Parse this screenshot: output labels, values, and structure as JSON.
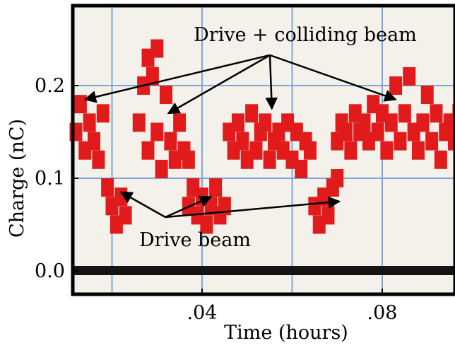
{
  "chart_data": {
    "type": "scatter",
    "title": "",
    "xlabel": "Time (hours)",
    "ylabel": "Charge (nC)",
    "xlim": [
      0.01,
      0.1
    ],
    "ylim": [
      -0.02,
      0.28
    ],
    "x_ticks": [
      {
        "value": 0.04,
        "label": ".04"
      },
      {
        "value": 0.08,
        "label": ".08"
      }
    ],
    "y_ticks": [
      {
        "value": 0.0,
        "label": "0.0"
      },
      {
        "value": 0.1,
        "label": "0.1"
      },
      {
        "value": 0.2,
        "label": "0.2"
      }
    ],
    "grid": true,
    "colors": {
      "points": "#e11b1b",
      "baseline": "#141414",
      "grid": "#7fa6d6",
      "background": "#f4f1ea"
    },
    "series": [
      {
        "color": "#e11b1b",
        "points": [
          [
            0.012,
            0.15
          ],
          [
            0.013,
            0.18
          ],
          [
            0.014,
            0.13
          ],
          [
            0.015,
            0.16
          ],
          [
            0.016,
            0.14
          ],
          [
            0.017,
            0.12
          ],
          [
            0.018,
            0.17
          ],
          [
            0.026,
            0.16
          ],
          [
            0.027,
            0.2
          ],
          [
            0.028,
            0.23
          ],
          [
            0.029,
            0.21
          ],
          [
            0.028,
            0.13
          ],
          [
            0.03,
            0.15
          ],
          [
            0.031,
            0.11
          ],
          [
            0.032,
            0.19
          ],
          [
            0.033,
            0.14
          ],
          [
            0.034,
            0.12
          ],
          [
            0.035,
            0.16
          ],
          [
            0.036,
            0.13
          ],
          [
            0.037,
            0.12
          ],
          [
            0.03,
            0.24
          ],
          [
            0.046,
            0.15
          ],
          [
            0.047,
            0.13
          ],
          [
            0.048,
            0.16
          ],
          [
            0.049,
            0.14
          ],
          [
            0.05,
            0.12
          ],
          [
            0.051,
            0.17
          ],
          [
            0.052,
            0.13
          ],
          [
            0.053,
            0.15
          ],
          [
            0.054,
            0.16
          ],
          [
            0.055,
            0.12
          ],
          [
            0.056,
            0.14
          ],
          [
            0.057,
            0.15
          ],
          [
            0.058,
            0.13
          ],
          [
            0.059,
            0.16
          ],
          [
            0.06,
            0.12
          ],
          [
            0.061,
            0.15
          ],
          [
            0.062,
            0.11
          ],
          [
            0.063,
            0.14
          ],
          [
            0.064,
            0.13
          ],
          [
            0.07,
            0.14
          ],
          [
            0.071,
            0.16
          ],
          [
            0.072,
            0.15
          ],
          [
            0.073,
            0.13
          ],
          [
            0.074,
            0.17
          ],
          [
            0.075,
            0.15
          ],
          [
            0.076,
            0.16
          ],
          [
            0.077,
            0.14
          ],
          [
            0.078,
            0.18
          ],
          [
            0.079,
            0.15
          ],
          [
            0.08,
            0.17
          ],
          [
            0.081,
            0.13
          ],
          [
            0.082,
            0.16
          ],
          [
            0.083,
            0.2
          ],
          [
            0.084,
            0.14
          ],
          [
            0.085,
            0.17
          ],
          [
            0.086,
            0.21
          ],
          [
            0.087,
            0.15
          ],
          [
            0.088,
            0.13
          ],
          [
            0.089,
            0.16
          ],
          [
            0.09,
            0.19
          ],
          [
            0.091,
            0.14
          ],
          [
            0.092,
            0.17
          ],
          [
            0.093,
            0.12
          ],
          [
            0.094,
            0.15
          ],
          [
            0.095,
            0.16
          ],
          [
            0.096,
            0.14
          ],
          [
            0.097,
            0.17
          ],
          [
            0.098,
            0.15
          ],
          [
            0.099,
            0.16
          ],
          [
            0.019,
            0.09
          ],
          [
            0.02,
            0.07
          ],
          [
            0.021,
            0.05
          ],
          [
            0.022,
            0.08
          ],
          [
            0.023,
            0.06
          ],
          [
            0.037,
            0.07
          ],
          [
            0.038,
            0.09
          ],
          [
            0.039,
            0.06
          ],
          [
            0.04,
            0.08
          ],
          [
            0.041,
            0.05
          ],
          [
            0.042,
            0.07
          ],
          [
            0.043,
            0.09
          ],
          [
            0.044,
            0.06
          ],
          [
            0.045,
            0.07
          ],
          [
            0.065,
            0.07
          ],
          [
            0.066,
            0.05
          ],
          [
            0.067,
            0.08
          ],
          [
            0.068,
            0.06
          ],
          [
            0.069,
            0.09
          ],
          [
            0.07,
            0.1
          ]
        ]
      }
    ],
    "baseline": {
      "value": 0.0,
      "color": "#141414"
    },
    "annotations": [
      {
        "text": "Drive + colliding beam",
        "targets": [
          [
            0.014,
            0.185
          ],
          [
            0.0325,
            0.17
          ],
          [
            0.0555,
            0.175
          ],
          [
            0.083,
            0.185
          ]
        ]
      },
      {
        "text": "Drive beam",
        "targets": [
          [
            0.022,
            0.085
          ],
          [
            0.042,
            0.08
          ],
          [
            0.0705,
            0.075
          ]
        ]
      }
    ]
  }
}
